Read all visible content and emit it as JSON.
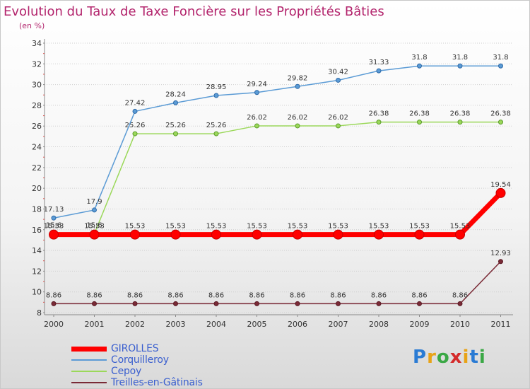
{
  "header": {
    "title": "Evolution du Taux de Taxe Foncière sur les Propriétés Bâties",
    "subtitle": "(en %)"
  },
  "brand": {
    "name": "Proxiti",
    "colors": [
      "#2a7bd4",
      "#e8a317",
      "#3aa845",
      "#d42a2a",
      "#e8a317",
      "#2a7bd4",
      "#3aa845"
    ]
  },
  "chart_data": {
    "type": "line",
    "title": "Evolution du Taux de Taxe Foncière sur les Propriétés Bâties",
    "ylabel": "(en %)",
    "xlabel": "",
    "ylim": [
      8,
      34
    ],
    "yticks": [
      8,
      10,
      12,
      14,
      16,
      18,
      20,
      22,
      24,
      26,
      28,
      30,
      32,
      34
    ],
    "grid": "horizontal",
    "categories": [
      "2000",
      "2001",
      "2002",
      "2003",
      "2004",
      "2005",
      "2006",
      "2007",
      "2008",
      "2009",
      "2010",
      "2011"
    ],
    "legend_position": "bottom-left",
    "series": [
      {
        "name": "Treilles-en-Gâtinais",
        "color": "#7a2a36",
        "values": [
          8.86,
          8.86,
          8.86,
          8.86,
          8.86,
          8.86,
          8.86,
          8.86,
          8.86,
          8.86,
          8.86,
          12.93
        ],
        "labels": [
          "8.86",
          "8.86",
          "8.86",
          "8.86",
          "8.86",
          "8.86",
          "8.86",
          "8.86",
          "8.86",
          "8.86",
          "8.86",
          "12.93"
        ]
      },
      {
        "name": "Cepoy",
        "color": "#9bd85a",
        "values": [
          15.6,
          15.6,
          25.26,
          25.26,
          25.26,
          26.02,
          26.02,
          26.02,
          26.38,
          26.38,
          26.38,
          26.38
        ],
        "labels": [
          "15.6",
          "15.6",
          "25.26",
          "25.26",
          "25.26",
          "26.02",
          "26.02",
          "26.02",
          "26.38",
          "26.38",
          "26.38",
          "26.38"
        ]
      },
      {
        "name": "Corquilleroy",
        "color": "#5b9bd5",
        "values": [
          17.13,
          17.9,
          27.42,
          28.24,
          28.95,
          29.24,
          29.82,
          30.42,
          31.33,
          31.8,
          31.8,
          31.8
        ],
        "labels": [
          "17.13",
          "17.9",
          "27.42",
          "28.24",
          "28.95",
          "29.24",
          "29.82",
          "30.42",
          "31.33",
          "31.8",
          "31.8",
          "31.8"
        ]
      },
      {
        "name": "GIROLLES",
        "color": "#ff0000",
        "values": [
          15.53,
          15.53,
          15.53,
          15.53,
          15.53,
          15.53,
          15.53,
          15.53,
          15.53,
          15.53,
          15.53,
          19.54
        ],
        "labels": [
          "15.53",
          "15.53",
          "15.53",
          "15.53",
          "15.53",
          "15.53",
          "15.53",
          "15.53",
          "15.53",
          "15.53",
          "15.53",
          "19.54"
        ]
      }
    ],
    "legend_order": [
      "GIROLLES",
      "Corquilleroy",
      "Cepoy",
      "Treilles-en-Gâtinais"
    ]
  }
}
